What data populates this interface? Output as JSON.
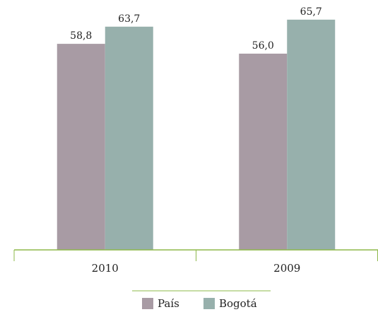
{
  "chart_data": {
    "type": "bar",
    "categories": [
      "2010",
      "2009"
    ],
    "series": [
      {
        "name": "País",
        "color": "#a89ba4",
        "values": [
          58.8,
          56.0
        ],
        "value_labels": [
          "58,8",
          "56,0"
        ]
      },
      {
        "name": "Bogotá",
        "color": "#97b0ac",
        "values": [
          63.7,
          65.7
        ],
        "value_labels": [
          "63,7",
          "65,7"
        ]
      }
    ],
    "ylim": [
      0,
      70
    ],
    "axis_color": "#8db84a",
    "legend": "bottom"
  }
}
